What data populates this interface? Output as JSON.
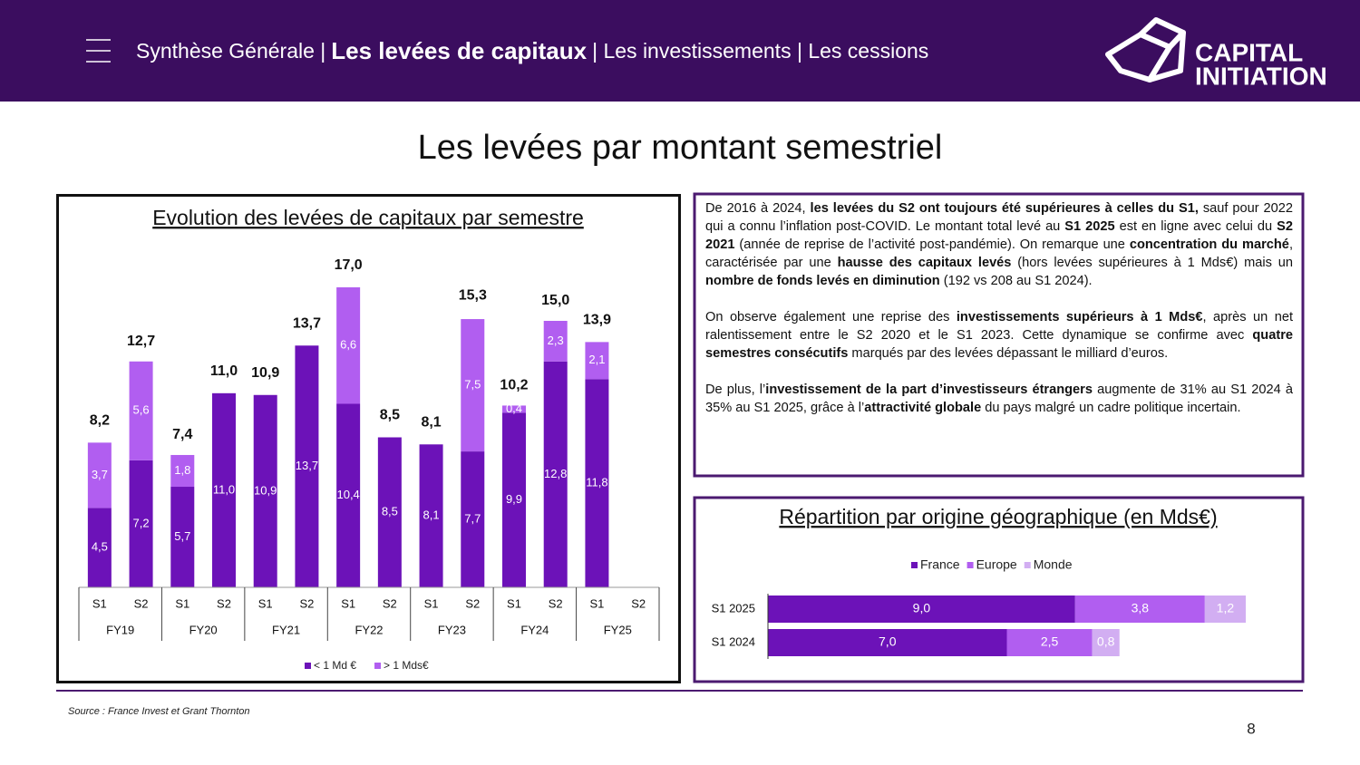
{
  "header": {
    "nav": [
      "Synthèse Générale |",
      "Les levées de capitaux",
      "| Les investissements | Les cessions"
    ],
    "logo": [
      "CAPITAL",
      "INITIATION"
    ]
  },
  "page_title": "Les levées par montant semestriel",
  "chart_data": [
    {
      "type": "bar",
      "title": "Evolution des levées de capitaux par semestre",
      "categories": [
        "S1",
        "S2",
        "S1",
        "S2",
        "S1",
        "S2",
        "S1",
        "S2",
        "S1",
        "S2",
        "S1",
        "S2",
        "S1",
        "S2"
      ],
      "groups": [
        "FY19",
        "FY20",
        "FY21",
        "FY22",
        "FY23",
        "FY24",
        "FY25"
      ],
      "series": [
        {
          "name": "< 1 Md €",
          "color": "#6c12b8",
          "values": [
            4.5,
            7.2,
            5.7,
            11.0,
            10.9,
            13.7,
            10.4,
            8.5,
            8.1,
            7.7,
            9.9,
            12.8,
            11.8,
            null
          ],
          "value_labels": [
            "4,5",
            "7,2",
            "5,7",
            "11,0",
            "10,9",
            "13,7",
            "10,4",
            "8,5",
            "8,1",
            "7,7",
            "9,9",
            "12,8",
            "11,8",
            null
          ]
        },
        {
          "name": "> 1 Mds€",
          "color": "#b15ef0",
          "values": [
            3.7,
            5.6,
            1.8,
            null,
            null,
            null,
            6.6,
            null,
            null,
            7.5,
            0.4,
            2.3,
            2.1,
            null
          ],
          "value_labels": [
            "3,7",
            "5,6",
            "1,8",
            null,
            null,
            null,
            "6,6",
            null,
            null,
            "7,5",
            "0,4",
            "2,3",
            "2,1",
            null
          ]
        }
      ],
      "totals": [
        8.2,
        12.7,
        7.4,
        11.0,
        10.9,
        13.7,
        17.0,
        8.5,
        8.1,
        15.3,
        10.2,
        15.0,
        13.9,
        null
      ],
      "total_labels": [
        "8,2",
        "12,7",
        "7,4",
        "11,0",
        "10,9",
        "13,7",
        "17,0",
        "8,5",
        "8,1",
        "15,3",
        "10,2",
        "15,0",
        "13,9",
        null
      ]
    },
    {
      "type": "barh",
      "title": "Répartition par origine géographique (en Mds€)",
      "categories": [
        "S1 2025",
        "S1 2024"
      ],
      "series": [
        {
          "name": "France",
          "color": "#6c12b8",
          "values": [
            9.0,
            7.0
          ],
          "value_labels": [
            "9,0",
            "7,0"
          ]
        },
        {
          "name": "Europe",
          "color": "#b15ef0",
          "values": [
            3.8,
            2.5
          ],
          "value_labels": [
            "3,8",
            "2,5"
          ]
        },
        {
          "name": "Monde",
          "color": "#d2aef2",
          "values": [
            1.2,
            0.8
          ],
          "value_labels": [
            "1,2",
            "0,8"
          ]
        }
      ]
    }
  ],
  "text_box": {
    "paragraphs": [
      [
        {
          "text": "De 2016 à 2024, "
        },
        {
          "text": "les levées du S2 ont toujours été supérieures à celles du S1,",
          "bold": true
        },
        {
          "text": " sauf pour 2022 qui a connu l’inflation post-COVID. Le montant total levé au "
        },
        {
          "text": "S1 2025",
          "bold": true
        },
        {
          "text": " est en ligne avec celui du "
        },
        {
          "text": "S2 2021",
          "bold": true
        },
        {
          "text": " (année de reprise de l’activité post-pandémie). On remarque une "
        },
        {
          "text": "concentration du marché",
          "bold": true
        },
        {
          "text": ", caractérisée par une "
        },
        {
          "text": "hausse des capitaux levés",
          "bold": true
        },
        {
          "text": " (hors levées supérieures à 1 Mds€) mais un "
        },
        {
          "text": "nombre de fonds levés en diminution",
          "bold": true
        },
        {
          "text": " (192 vs 208 au S1 2024)."
        }
      ],
      [
        {
          "text": "On observe également une reprise des "
        },
        {
          "text": "investissements supérieurs à 1 Mds€",
          "bold": true
        },
        {
          "text": ", après un net ralentissement entre le S2 2020 et le S1 2023. Cette dynamique se confirme avec "
        },
        {
          "text": "quatre semestres consécutifs",
          "bold": true
        },
        {
          "text": " marqués par des levées dépassant le milliard d’euros."
        }
      ],
      [
        {
          "text": "De plus, l’"
        },
        {
          "text": "investissement de la part d’investisseurs étrangers",
          "bold": true
        },
        {
          "text": " augmente de 31% au S1 2024 à 35% au S1 2025, grâce à l’"
        },
        {
          "text": "attractivité globale",
          "bold": true
        },
        {
          "text": " du pays malgré un cadre politique incertain."
        }
      ]
    ]
  },
  "source": "Source : France Invest et Grant Thornton",
  "page_number": "8"
}
